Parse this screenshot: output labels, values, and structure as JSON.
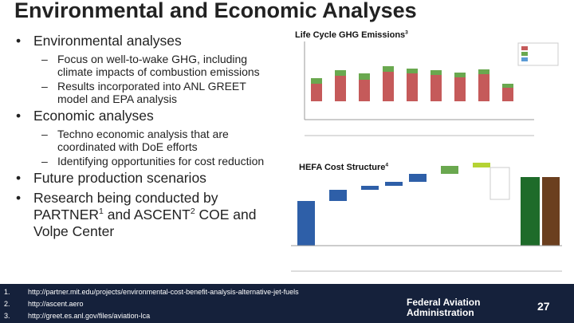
{
  "header": {
    "title": "Environmental and Economic Analyses"
  },
  "bullets": [
    {
      "level": 1,
      "runs": [
        {
          "text": "Environmental analyses"
        }
      ]
    },
    {
      "level": 2,
      "runs": [
        {
          "text": "Focus on well-to-wake GHG, including climate impacts of combustion emissions"
        }
      ]
    },
    {
      "level": 2,
      "runs": [
        {
          "text": "Results incorporated into ANL GREET model and EPA analysis"
        }
      ]
    },
    {
      "level": 1,
      "runs": [
        {
          "text": "Economic analyses"
        }
      ]
    },
    {
      "level": 2,
      "runs": [
        {
          "text": "Techno economic analysis that are coordinated with DoE efforts"
        }
      ]
    },
    {
      "level": 2,
      "runs": [
        {
          "text": "Identifying opportunities for cost reduction"
        }
      ]
    },
    {
      "level": 1,
      "runs": [
        {
          "text": "Future production scenarios"
        }
      ]
    },
    {
      "level": 1,
      "runs": [
        {
          "text": "Research being conducted by PARTNER"
        },
        {
          "sup": "1"
        },
        {
          "text": " and ASCENT"
        },
        {
          "sup": "2"
        },
        {
          "text": " COE and Volpe Center"
        }
      ]
    }
  ],
  "figures": [
    {
      "title": "Life Cycle GHG Emissions",
      "sup": "3"
    },
    {
      "title": "HEFA Cost Structure",
      "sup": "4"
    }
  ],
  "footnotes": [
    {
      "number": "1.",
      "text": "http://partner.mit.edu/projects/environmental-cost-benefit-analysis-alternative-jet-fuels"
    },
    {
      "number": "2.",
      "text": "http://ascent.aero"
    },
    {
      "number": "3.",
      "text": "http://greet.es.anl.gov/files/aviation-lca"
    }
  ],
  "footer": {
    "agency": "Federal Aviation Administration",
    "page": "27"
  }
}
